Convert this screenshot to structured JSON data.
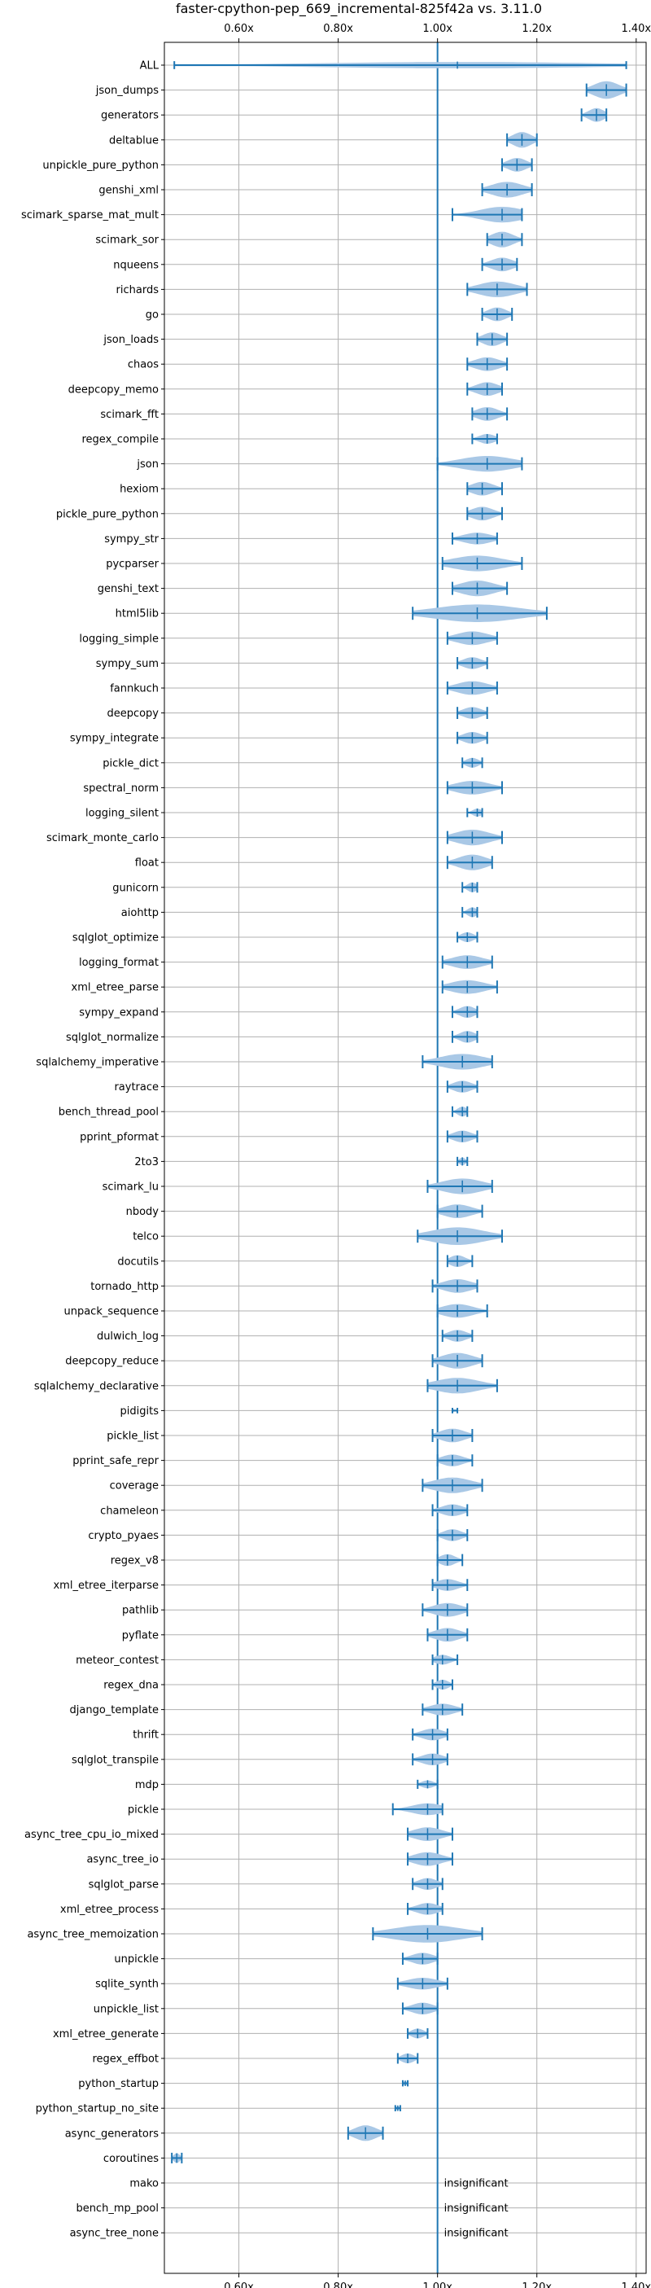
{
  "chart_data": {
    "type": "violin",
    "title": "faster-cpython-pep_669_incremental-825f42a vs. 3.11.0",
    "xlabel": "",
    "ylabel": "",
    "xlim": [
      0.45,
      1.42
    ],
    "xticks": [
      "0.60x",
      "0.80x",
      "1.00x",
      "1.20x",
      "1.40x"
    ],
    "xtick_values": [
      0.6,
      0.8,
      1.0,
      1.2,
      1.4
    ],
    "reference_line": 1.0,
    "grid": true,
    "colors": {
      "violin": "#a9c8e6",
      "line": "#1f77b4"
    },
    "insignificant_label": "insignificant",
    "benchmarks": [
      {
        "name": "ALL",
        "min": 0.47,
        "max": 1.38,
        "median": 1.04,
        "width": 0.32
      },
      {
        "name": "json_dumps",
        "min": 1.3,
        "max": 1.38,
        "median": 1.34,
        "width": 0.9
      },
      {
        "name": "generators",
        "min": 1.29,
        "max": 1.34,
        "median": 1.32,
        "width": 0.7
      },
      {
        "name": "deltablue",
        "min": 1.14,
        "max": 1.2,
        "median": 1.17,
        "width": 0.8
      },
      {
        "name": "unpickle_pure_python",
        "min": 1.13,
        "max": 1.19,
        "median": 1.16,
        "width": 0.7
      },
      {
        "name": "genshi_xml",
        "min": 1.09,
        "max": 1.19,
        "median": 1.14,
        "width": 0.8
      },
      {
        "name": "scimark_sparse_mat_mult",
        "min": 1.03,
        "max": 1.17,
        "median": 1.13,
        "width": 0.8
      },
      {
        "name": "scimark_sor",
        "min": 1.1,
        "max": 1.17,
        "median": 1.13,
        "width": 0.8
      },
      {
        "name": "nqueens",
        "min": 1.09,
        "max": 1.16,
        "median": 1.13,
        "width": 0.7
      },
      {
        "name": "richards",
        "min": 1.06,
        "max": 1.18,
        "median": 1.12,
        "width": 0.8
      },
      {
        "name": "go",
        "min": 1.09,
        "max": 1.15,
        "median": 1.12,
        "width": 0.7
      },
      {
        "name": "json_loads",
        "min": 1.08,
        "max": 1.14,
        "median": 1.11,
        "width": 0.7
      },
      {
        "name": "chaos",
        "min": 1.06,
        "max": 1.14,
        "median": 1.1,
        "width": 0.7
      },
      {
        "name": "deepcopy_memo",
        "min": 1.06,
        "max": 1.13,
        "median": 1.1,
        "width": 0.7
      },
      {
        "name": "scimark_fft",
        "min": 1.07,
        "max": 1.14,
        "median": 1.1,
        "width": 0.7
      },
      {
        "name": "regex_compile",
        "min": 1.07,
        "max": 1.12,
        "median": 1.1,
        "width": 0.5
      },
      {
        "name": "json",
        "min": 1.0,
        "max": 1.17,
        "median": 1.1,
        "width": 0.8
      },
      {
        "name": "hexiom",
        "min": 1.06,
        "max": 1.13,
        "median": 1.09,
        "width": 0.7
      },
      {
        "name": "pickle_pure_python",
        "min": 1.06,
        "max": 1.13,
        "median": 1.09,
        "width": 0.7
      },
      {
        "name": "sympy_str",
        "min": 1.03,
        "max": 1.12,
        "median": 1.08,
        "width": 0.6
      },
      {
        "name": "pycparser",
        "min": 1.01,
        "max": 1.17,
        "median": 1.08,
        "width": 0.8
      },
      {
        "name": "genshi_text",
        "min": 1.03,
        "max": 1.14,
        "median": 1.08,
        "width": 0.8
      },
      {
        "name": "html5lib",
        "min": 0.95,
        "max": 1.22,
        "median": 1.08,
        "width": 0.9
      },
      {
        "name": "logging_simple",
        "min": 1.02,
        "max": 1.12,
        "median": 1.07,
        "width": 0.7
      },
      {
        "name": "sympy_sum",
        "min": 1.04,
        "max": 1.1,
        "median": 1.07,
        "width": 0.6
      },
      {
        "name": "fannkuch",
        "min": 1.02,
        "max": 1.12,
        "median": 1.07,
        "width": 0.7
      },
      {
        "name": "deepcopy",
        "min": 1.04,
        "max": 1.1,
        "median": 1.07,
        "width": 0.6
      },
      {
        "name": "sympy_integrate",
        "min": 1.04,
        "max": 1.1,
        "median": 1.07,
        "width": 0.6
      },
      {
        "name": "pickle_dict",
        "min": 1.05,
        "max": 1.09,
        "median": 1.07,
        "width": 0.5
      },
      {
        "name": "spectral_norm",
        "min": 1.02,
        "max": 1.13,
        "median": 1.07,
        "width": 0.7
      },
      {
        "name": "logging_silent",
        "min": 1.06,
        "max": 1.09,
        "median": 1.08,
        "width": 0.4
      },
      {
        "name": "scimark_monte_carlo",
        "min": 1.02,
        "max": 1.13,
        "median": 1.07,
        "width": 0.8
      },
      {
        "name": "float",
        "min": 1.02,
        "max": 1.11,
        "median": 1.07,
        "width": 0.8
      },
      {
        "name": "gunicorn",
        "min": 1.05,
        "max": 1.08,
        "median": 1.07,
        "width": 0.5
      },
      {
        "name": "aiohttp",
        "min": 1.05,
        "max": 1.08,
        "median": 1.07,
        "width": 0.5
      },
      {
        "name": "sqlglot_optimize",
        "min": 1.04,
        "max": 1.08,
        "median": 1.06,
        "width": 0.5
      },
      {
        "name": "logging_format",
        "min": 1.01,
        "max": 1.11,
        "median": 1.06,
        "width": 0.7
      },
      {
        "name": "xml_etree_parse",
        "min": 1.01,
        "max": 1.12,
        "median": 1.06,
        "width": 0.7
      },
      {
        "name": "sympy_expand",
        "min": 1.03,
        "max": 1.08,
        "median": 1.06,
        "width": 0.6
      },
      {
        "name": "sqlglot_normalize",
        "min": 1.03,
        "max": 1.08,
        "median": 1.06,
        "width": 0.6
      },
      {
        "name": "sqlalchemy_imperative",
        "min": 0.97,
        "max": 1.11,
        "median": 1.05,
        "width": 0.8
      },
      {
        "name": "raytrace",
        "min": 1.02,
        "max": 1.08,
        "median": 1.05,
        "width": 0.6
      },
      {
        "name": "bench_thread_pool",
        "min": 1.03,
        "max": 1.06,
        "median": 1.05,
        "width": 0.5
      },
      {
        "name": "pprint_pformat",
        "min": 1.02,
        "max": 1.08,
        "median": 1.05,
        "width": 0.6
      },
      {
        "name": "2to3",
        "min": 1.04,
        "max": 1.06,
        "median": 1.05,
        "width": 0.4
      },
      {
        "name": "scimark_lu",
        "min": 0.98,
        "max": 1.11,
        "median": 1.05,
        "width": 0.8
      },
      {
        "name": "nbody",
        "min": 1.0,
        "max": 1.09,
        "median": 1.04,
        "width": 0.7
      },
      {
        "name": "telco",
        "min": 0.96,
        "max": 1.13,
        "median": 1.04,
        "width": 0.9
      },
      {
        "name": "docutils",
        "min": 1.02,
        "max": 1.07,
        "median": 1.04,
        "width": 0.6
      },
      {
        "name": "tornado_http",
        "min": 0.99,
        "max": 1.08,
        "median": 1.04,
        "width": 0.7
      },
      {
        "name": "unpack_sequence",
        "min": 1.0,
        "max": 1.1,
        "median": 1.04,
        "width": 0.7
      },
      {
        "name": "dulwich_log",
        "min": 1.01,
        "max": 1.07,
        "median": 1.04,
        "width": 0.6
      },
      {
        "name": "deepcopy_reduce",
        "min": 0.99,
        "max": 1.09,
        "median": 1.04,
        "width": 0.8
      },
      {
        "name": "sqlalchemy_declarative",
        "min": 0.98,
        "max": 1.12,
        "median": 1.04,
        "width": 0.8
      },
      {
        "name": "pidigits",
        "min": 1.03,
        "max": 1.04,
        "median": 1.03,
        "width": 0.15
      },
      {
        "name": "pickle_list",
        "min": 0.99,
        "max": 1.07,
        "median": 1.03,
        "width": 0.7
      },
      {
        "name": "pprint_safe_repr",
        "min": 1.0,
        "max": 1.07,
        "median": 1.03,
        "width": 0.6
      },
      {
        "name": "coverage",
        "min": 0.97,
        "max": 1.09,
        "median": 1.03,
        "width": 0.8
      },
      {
        "name": "chameleon",
        "min": 0.99,
        "max": 1.06,
        "median": 1.03,
        "width": 0.6
      },
      {
        "name": "crypto_pyaes",
        "min": 1.0,
        "max": 1.06,
        "median": 1.03,
        "width": 0.6
      },
      {
        "name": "regex_v8",
        "min": 1.0,
        "max": 1.05,
        "median": 1.02,
        "width": 0.6
      },
      {
        "name": "xml_etree_iterparse",
        "min": 0.99,
        "max": 1.06,
        "median": 1.02,
        "width": 0.6
      },
      {
        "name": "pathlib",
        "min": 0.97,
        "max": 1.06,
        "median": 1.02,
        "width": 0.7
      },
      {
        "name": "pyflate",
        "min": 0.98,
        "max": 1.06,
        "median": 1.02,
        "width": 0.7
      },
      {
        "name": "meteor_contest",
        "min": 0.99,
        "max": 1.04,
        "median": 1.01,
        "width": 0.5
      },
      {
        "name": "regex_dna",
        "min": 0.99,
        "max": 1.03,
        "median": 1.01,
        "width": 0.5
      },
      {
        "name": "django_template",
        "min": 0.97,
        "max": 1.05,
        "median": 1.01,
        "width": 0.6
      },
      {
        "name": "thrift",
        "min": 0.95,
        "max": 1.02,
        "median": 0.99,
        "width": 0.6
      },
      {
        "name": "sqlglot_transpile",
        "min": 0.95,
        "max": 1.02,
        "median": 0.99,
        "width": 0.6
      },
      {
        "name": "mdp",
        "min": 0.96,
        "max": 1.0,
        "median": 0.98,
        "width": 0.4
      },
      {
        "name": "pickle",
        "min": 0.91,
        "max": 1.01,
        "median": 0.98,
        "width": 0.6
      },
      {
        "name": "async_tree_cpu_io_mixed",
        "min": 0.94,
        "max": 1.03,
        "median": 0.98,
        "width": 0.7
      },
      {
        "name": "async_tree_io",
        "min": 0.94,
        "max": 1.03,
        "median": 0.98,
        "width": 0.7
      },
      {
        "name": "sqlglot_parse",
        "min": 0.95,
        "max": 1.01,
        "median": 0.98,
        "width": 0.6
      },
      {
        "name": "xml_etree_process",
        "min": 0.94,
        "max": 1.01,
        "median": 0.98,
        "width": 0.6
      },
      {
        "name": "async_tree_memoization",
        "min": 0.87,
        "max": 1.09,
        "median": 0.98,
        "width": 0.9
      },
      {
        "name": "unpickle",
        "min": 0.93,
        "max": 1.0,
        "median": 0.97,
        "width": 0.6
      },
      {
        "name": "sqlite_synth",
        "min": 0.92,
        "max": 1.02,
        "median": 0.97,
        "width": 0.6
      },
      {
        "name": "unpickle_list",
        "min": 0.93,
        "max": 1.0,
        "median": 0.97,
        "width": 0.6
      },
      {
        "name": "xml_etree_generate",
        "min": 0.94,
        "max": 0.98,
        "median": 0.96,
        "width": 0.5
      },
      {
        "name": "regex_effbot",
        "min": 0.92,
        "max": 0.96,
        "median": 0.94,
        "width": 0.5
      },
      {
        "name": "python_startup",
        "min": 0.93,
        "max": 0.94,
        "median": 0.935,
        "width": 0.2
      },
      {
        "name": "python_startup_no_site",
        "min": 0.915,
        "max": 0.925,
        "median": 0.92,
        "width": 0.2
      },
      {
        "name": "async_generators",
        "min": 0.82,
        "max": 0.89,
        "median": 0.855,
        "width": 0.8
      },
      {
        "name": "coroutines",
        "min": 0.465,
        "max": 0.485,
        "median": 0.475,
        "width": 0.5
      },
      {
        "name": "mako",
        "insignificant": true
      },
      {
        "name": "bench_mp_pool",
        "insignificant": true
      },
      {
        "name": "async_tree_none",
        "insignificant": true
      }
    ]
  }
}
